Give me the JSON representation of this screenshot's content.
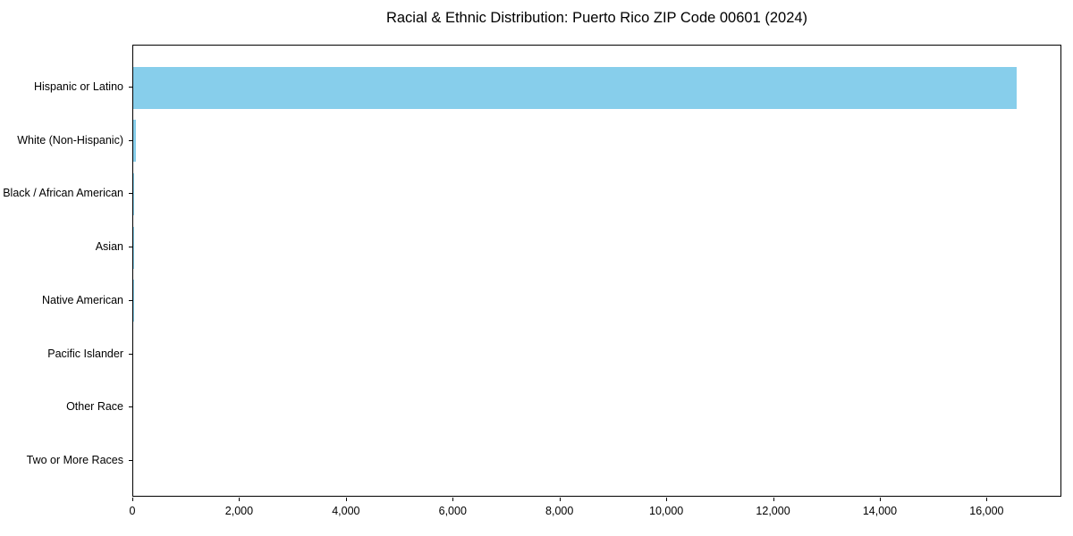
{
  "title": "Racial & Ethnic Distribution: Puerto Rico ZIP Code 00601 (2024)",
  "colors": {
    "bar": "#87CEEB",
    "axis": "#000000",
    "text": "#000000",
    "background": "#ffffff"
  },
  "chart_data": {
    "type": "bar",
    "orientation": "horizontal",
    "title": "Racial & Ethnic Distribution: Puerto Rico ZIP Code 00601 (2024)",
    "xlabel": "",
    "ylabel": "",
    "categories": [
      "Hispanic or Latino",
      "White (Non-Hispanic)",
      "Black / African American",
      "Asian",
      "Native American",
      "Pacific Islander",
      "Other Race",
      "Two or More Races"
    ],
    "values": [
      16540,
      50,
      10,
      15,
      5,
      0,
      0,
      0
    ],
    "bar_color": "#87CEEB",
    "xlim": [
      0,
      17400
    ],
    "x_ticks": [
      0,
      2000,
      4000,
      6000,
      8000,
      10000,
      12000,
      14000,
      16000
    ],
    "x_tick_labels": [
      "0",
      "2,000",
      "4,000",
      "6,000",
      "8,000",
      "10,000",
      "12,000",
      "14,000",
      "16,000"
    ],
    "grid": false,
    "legend": false
  }
}
